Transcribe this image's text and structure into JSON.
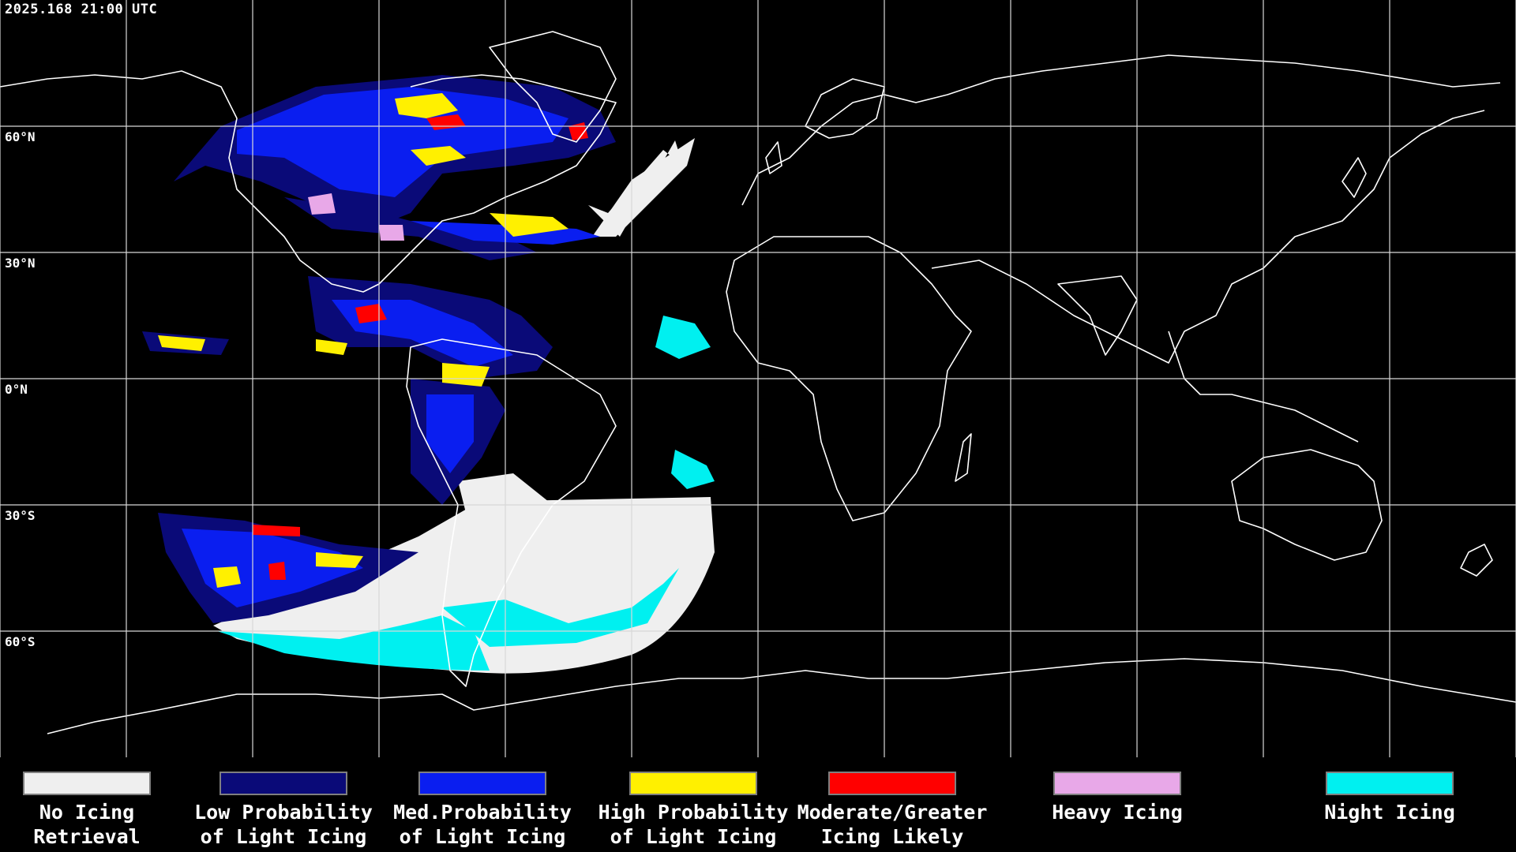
{
  "timestamp": "2025.168 21:00 UTC",
  "latitude_labels": [
    "60°N",
    "30°N",
    "0°N",
    "30°S",
    "60°S"
  ],
  "legend": [
    {
      "label": "No Icing\nRetrieval",
      "color": "#efefef"
    },
    {
      "label": "Low Probability\nof Light Icing",
      "color": "#0a0a78"
    },
    {
      "label": "Med.Probability\nof Light Icing",
      "color": "#0a1ef0"
    },
    {
      "label": "High Probability\nof Light Icing",
      "color": "#fff000"
    },
    {
      "label": "Moderate/Greater\nIcing Likely",
      "color": "#ff0000"
    },
    {
      "label": "Heavy Icing",
      "color": "#e8a8e8"
    },
    {
      "label": "Night Icing",
      "color": "#00f0f0"
    }
  ],
  "colors": {
    "background": "#000000",
    "grid": "#d8d8d8",
    "coastline": "#ffffff",
    "no_icing": "#efefef",
    "night_icing": "#00f0f0",
    "low_prob": "#0a0a78",
    "med_prob": "#0a1ef0",
    "high_prob": "#fff000",
    "moderate": "#ff0000",
    "heavy": "#e8a8e8"
  }
}
